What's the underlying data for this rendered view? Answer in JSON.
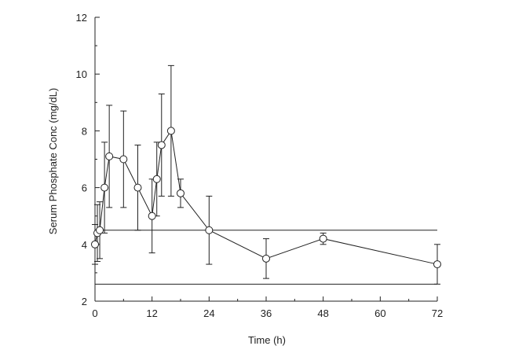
{
  "chart_data": {
    "type": "line",
    "title": "",
    "xlabel": "Time (h)",
    "ylabel": "Serum Phosphate Conc (mg/dL)",
    "xlim": [
      0,
      72
    ],
    "ylim": [
      2,
      12
    ],
    "x_ticks": [
      0,
      12,
      24,
      36,
      48,
      60,
      72
    ],
    "y_ticks": [
      2,
      4,
      6,
      8,
      10,
      12
    ],
    "grid": false,
    "legend": "none",
    "series": [
      {
        "marker": "open-circle",
        "x": [
          0,
          0.5,
          1,
          2,
          3,
          6,
          9,
          12,
          13,
          14,
          16,
          18,
          24,
          36,
          48,
          72
        ],
        "y": [
          4.0,
          4.4,
          4.5,
          6.0,
          7.1,
          7.0,
          6.0,
          5.0,
          6.3,
          7.5,
          8.0,
          5.8,
          4.5,
          3.5,
          4.2,
          3.3
        ],
        "error": [
          0.7,
          1.0,
          1.0,
          1.6,
          1.8,
          1.7,
          1.5,
          1.3,
          1.3,
          1.8,
          2.3,
          0.5,
          1.2,
          0.7,
          0.2,
          0.7
        ]
      }
    ],
    "reference_lines": [
      {
        "axis": "y",
        "value": 4.5
      },
      {
        "axis": "y",
        "value": 2.6
      }
    ]
  }
}
